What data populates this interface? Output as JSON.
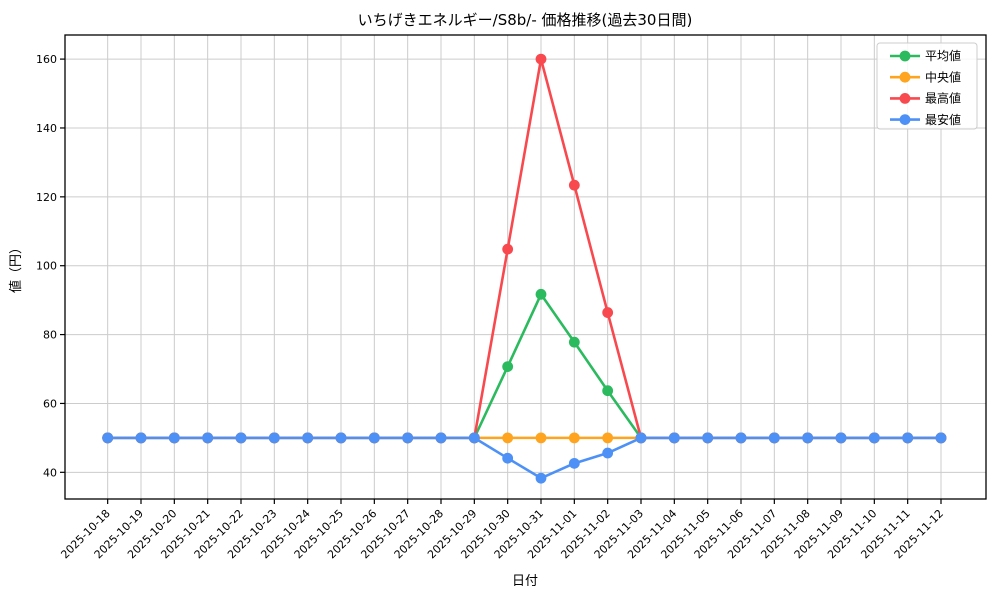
{
  "chart_data": {
    "type": "line",
    "title": "いちげきエネルギー/S8b/- 価格推移(過去30日間)",
    "xlabel": "日付",
    "ylabel": "値（円）",
    "x": [
      "2025-10-18",
      "2025-10-19",
      "2025-10-20",
      "2025-10-21",
      "2025-10-22",
      "2025-10-23",
      "2025-10-24",
      "2025-10-25",
      "2025-10-26",
      "2025-10-27",
      "2025-10-28",
      "2025-10-29",
      "2025-10-30",
      "2025-10-31",
      "2025-11-01",
      "2025-11-02",
      "2025-11-03",
      "2025-11-04",
      "2025-11-05",
      "2025-11-06",
      "2025-11-07",
      "2025-11-08",
      "2025-11-09",
      "2025-11-10",
      "2025-11-11",
      "2025-11-12"
    ],
    "series": [
      {
        "key": "average",
        "name": "平均値",
        "color": "#2cba5e",
        "values": [
          50,
          50,
          50,
          50,
          50,
          50,
          50,
          50,
          50,
          50,
          50,
          50,
          70.7,
          91.7,
          77.8,
          63.7,
          50,
          50,
          50,
          50,
          50,
          50,
          50,
          50,
          50,
          50
        ]
      },
      {
        "key": "median",
        "name": "中央値",
        "color": "#ffa41e",
        "values": [
          50,
          50,
          50,
          50,
          50,
          50,
          50,
          50,
          50,
          50,
          50,
          50,
          50,
          50,
          50,
          50,
          50,
          50,
          50,
          50,
          50,
          50,
          50,
          50,
          50,
          50
        ]
      },
      {
        "key": "max",
        "name": "最高値",
        "color": "#f8494f",
        "values": [
          50,
          50,
          50,
          50,
          50,
          50,
          50,
          50,
          50,
          50,
          50,
          50,
          104.8,
          160,
          123.4,
          86.4,
          50,
          50,
          50,
          50,
          50,
          50,
          50,
          50,
          50,
          50
        ]
      },
      {
        "key": "min",
        "name": "最安値",
        "color": "#4d91f7",
        "values": [
          50,
          50,
          50,
          50,
          50,
          50,
          50,
          50,
          50,
          50,
          50,
          50,
          44.1,
          38.3,
          42.6,
          45.6,
          50,
          50,
          50,
          50,
          50,
          50,
          50,
          50,
          50,
          50
        ]
      }
    ],
    "yticks": [
      40,
      60,
      80,
      100,
      120,
      140,
      160
    ],
    "ylim": [
      32.25,
      167.0
    ],
    "xlim": [
      -1.28,
      26.35
    ],
    "grid": true,
    "legend_position": "upper right"
  },
  "colors": {
    "background": "#ffffff",
    "grid": "#cccccc",
    "spine": "#000000",
    "legend_border": "#cccccc",
    "text": "#000000"
  }
}
